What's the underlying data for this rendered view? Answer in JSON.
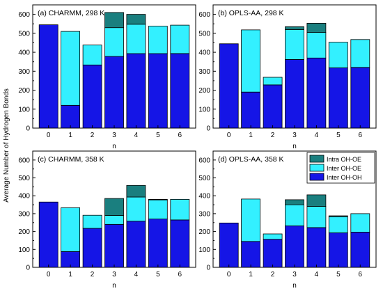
{
  "figure": {
    "ylabel": "Average Number of Hydrogen Bonds",
    "xlabel": "n"
  },
  "colors": {
    "intra_oh_oe": "#1a7f7f",
    "inter_oh_oe": "#33f0ff",
    "inter_oh_oh": "#1515e6"
  },
  "chart_data": [
    {
      "type": "bar",
      "stacked": true,
      "title": "(a) CHARMM, 298 K",
      "xlabel": "n",
      "ylabel": "Average Number of Hydrogen Bonds",
      "categories": [
        "0",
        "1",
        "2",
        "3",
        "4",
        "5",
        "6"
      ],
      "ylim": [
        0,
        650
      ],
      "yticks": [
        0,
        100,
        200,
        300,
        400,
        500,
        600
      ],
      "series": [
        {
          "name": "Inter OH-OH",
          "values": [
            545,
            120,
            333,
            378,
            393,
            393,
            393
          ]
        },
        {
          "name": "Inter OH-OE",
          "values": [
            0,
            390,
            105,
            152,
            155,
            145,
            150
          ]
        },
        {
          "name": "Intra OH-OE",
          "values": [
            0,
            0,
            0,
            80,
            52,
            0,
            0
          ]
        }
      ]
    },
    {
      "type": "bar",
      "stacked": true,
      "title": "(b) OPLS-AA, 298 K",
      "xlabel": "n",
      "ylabel": "",
      "categories": [
        "0",
        "1",
        "2",
        "3",
        "4",
        "5",
        "6"
      ],
      "ylim": [
        0,
        650
      ],
      "yticks": [
        0,
        100,
        200,
        300,
        400,
        500,
        600
      ],
      "series": [
        {
          "name": "Inter OH-OH",
          "values": [
            445,
            190,
            228,
            362,
            370,
            318,
            320
          ]
        },
        {
          "name": "Inter OH-OE",
          "values": [
            0,
            328,
            40,
            158,
            135,
            135,
            147
          ]
        },
        {
          "name": "Intra OH-OE",
          "values": [
            0,
            0,
            0,
            15,
            48,
            0,
            0
          ]
        }
      ]
    },
    {
      "type": "bar",
      "stacked": true,
      "title": "(c) CHARMM, 358 K",
      "xlabel": "n",
      "ylabel": "Average Number of Hydrogen Bonds",
      "categories": [
        "0",
        "1",
        "2",
        "3",
        "4",
        "5",
        "6"
      ],
      "ylim": [
        0,
        650
      ],
      "yticks": [
        0,
        100,
        200,
        300,
        400,
        500,
        600
      ],
      "series": [
        {
          "name": "Inter OH-OH",
          "values": [
            365,
            88,
            218,
            240,
            258,
            270,
            265
          ]
        },
        {
          "name": "Inter OH-OE",
          "values": [
            0,
            245,
            73,
            50,
            135,
            107,
            115
          ]
        },
        {
          "name": "Intra OH-OE",
          "values": [
            0,
            0,
            0,
            95,
            65,
            3,
            0
          ]
        }
      ]
    },
    {
      "type": "bar",
      "stacked": true,
      "title": "(d) OPLS-AA, 358 K",
      "xlabel": "n",
      "ylabel": "",
      "categories": [
        "0",
        "1",
        "2",
        "3",
        "4",
        "5",
        "6"
      ],
      "ylim": [
        0,
        650
      ],
      "yticks": [
        0,
        100,
        200,
        300,
        400,
        500,
        600
      ],
      "legend": {
        "position": "top-right",
        "entries": [
          "Intra OH-OE",
          "Inter OH-OE",
          "Inter OH-OH"
        ]
      },
      "series": [
        {
          "name": "Inter OH-OH",
          "values": [
            248,
            145,
            157,
            232,
            222,
            193,
            197
          ]
        },
        {
          "name": "Inter OH-OE",
          "values": [
            0,
            237,
            30,
            118,
            118,
            90,
            103
          ]
        },
        {
          "name": "Intra OH-OE",
          "values": [
            0,
            0,
            0,
            28,
            65,
            5,
            0
          ]
        }
      ]
    }
  ]
}
